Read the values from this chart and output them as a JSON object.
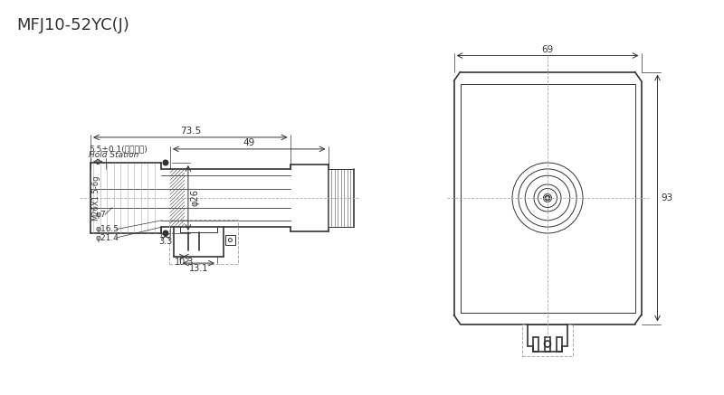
{
  "title": "MFJ10-52YC(J)",
  "bg_color": "#ffffff",
  "line_color": "#333333",
  "dims": {
    "d7": "φ7",
    "d16": "φ16.5",
    "d21": "φ21.4",
    "d26": "φ26",
    "m26": "M26X1.5-6g",
    "dim_3_3": "3.3",
    "dim_10_3": "10.3",
    "dim_13_1": "13.1",
    "dim_49": "49",
    "dim_73_5": "73.5",
    "dim_5_5": "5.5±0.1(吸合位置)",
    "hold": "Hold Station",
    "dim_93": "93",
    "dim_69": "69"
  }
}
